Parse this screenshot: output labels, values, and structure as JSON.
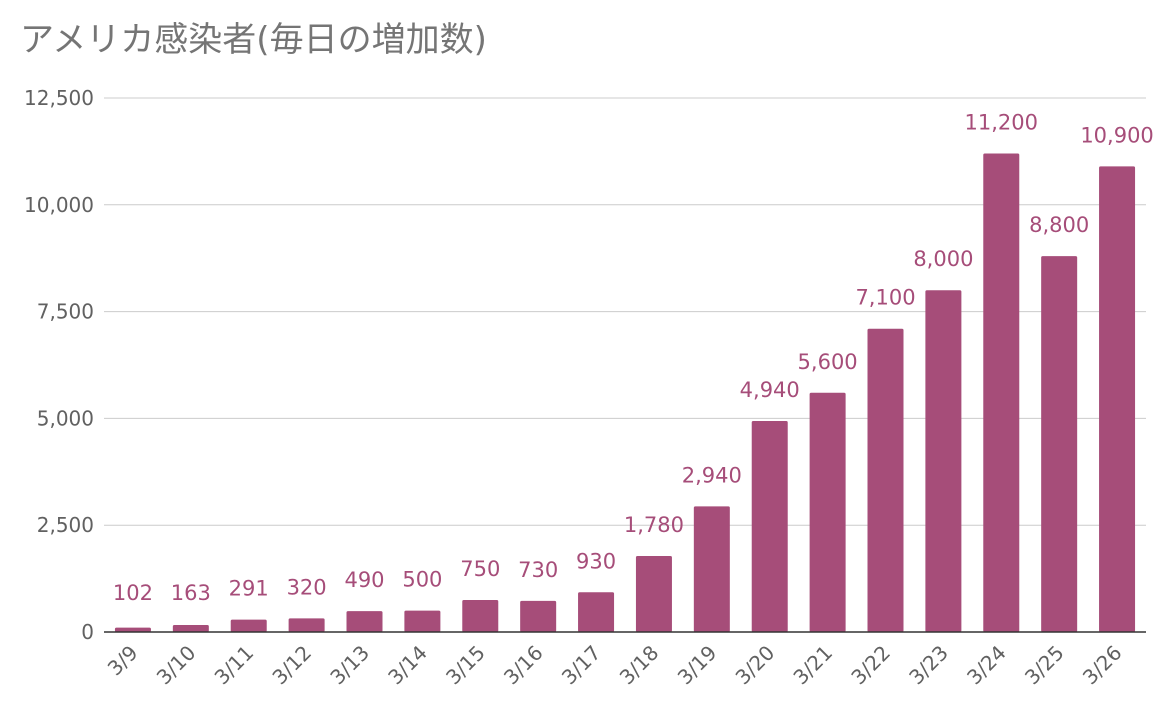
{
  "title": "アメリカ感染者(毎日の増加数)",
  "colors": {
    "bar": "#a64d79",
    "label": "#a64d79",
    "grid": "#cccccc",
    "axis": "#333333"
  },
  "chart_data": {
    "type": "bar",
    "title": "アメリカ感染者(毎日の増加数)",
    "xlabel": "",
    "ylabel": "",
    "categories": [
      "3/9",
      "3/10",
      "3/11",
      "3/12",
      "3/13",
      "3/14",
      "3/15",
      "3/16",
      "3/17",
      "3/18",
      "3/19",
      "3/20",
      "3/21",
      "3/22",
      "3/23",
      "3/24",
      "3/25",
      "3/26"
    ],
    "values": [
      102,
      163,
      291,
      320,
      490,
      500,
      750,
      730,
      930,
      1780,
      2940,
      4940,
      5600,
      7100,
      8000,
      11200,
      8800,
      10900
    ],
    "data_labels": [
      "102",
      "163",
      "291",
      "320",
      "490",
      "500",
      "750",
      "730",
      "930",
      "1,780",
      "2,940",
      "4,940",
      "5,600",
      "7,100",
      "8,000",
      "11,200",
      "8,800",
      "10,900"
    ],
    "ylim": [
      0,
      12500
    ],
    "yticks": [
      0,
      2500,
      5000,
      7500,
      10000,
      12500
    ],
    "ytick_labels": [
      "0",
      "2,500",
      "5,000",
      "7,500",
      "10,000",
      "12,500"
    ],
    "grid": true,
    "legend": "none"
  }
}
